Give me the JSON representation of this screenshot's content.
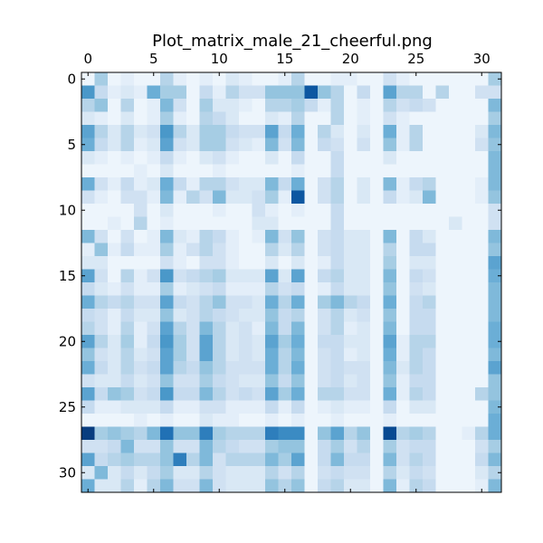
{
  "chart_data": {
    "type": "heatmap",
    "title": "Plot_matrix_male_21_cheerful.png",
    "xlabel": "",
    "ylabel": "",
    "n_rows": 32,
    "n_cols": 32,
    "x_ticks": [
      0,
      5,
      10,
      15,
      20,
      25,
      30
    ],
    "y_ticks": [
      0,
      5,
      10,
      15,
      20,
      25,
      30
    ],
    "x_axis_position": "top",
    "y_axis_position": "left",
    "y_inverted": true,
    "grid": false,
    "colormap": "Blues",
    "value_range": [
      0,
      1
    ],
    "colorscale": [
      "#f7fbff",
      "#deebf7",
      "#c6dbef",
      "#9ecae1",
      "#6baed6",
      "#4292c6",
      "#2171b5",
      "#08519c",
      "#08306b"
    ],
    "values": [
      [
        0.05,
        0.35,
        0.05,
        0.1,
        0.05,
        0.05,
        0.3,
        0.1,
        0.05,
        0.1,
        0.05,
        0.15,
        0.1,
        0.05,
        0.05,
        0.1,
        0.3,
        0.05,
        0.05,
        0.1,
        0.1,
        0.05,
        0.05,
        0.2,
        0.1,
        0.05,
        0.05,
        0.05,
        0.05,
        0.05,
        0.05,
        0.35
      ],
      [
        0.6,
        0.25,
        0.1,
        0.15,
        0.1,
        0.5,
        0.35,
        0.35,
        0.05,
        0.25,
        0.1,
        0.3,
        0.2,
        0.2,
        0.4,
        0.4,
        0.4,
        0.85,
        0.4,
        0.3,
        0.05,
        0.25,
        0.05,
        0.55,
        0.3,
        0.3,
        0.05,
        0.3,
        0.05,
        0.05,
        0.2,
        0.2
      ],
      [
        0.3,
        0.4,
        0.05,
        0.3,
        0.05,
        0.1,
        0.45,
        0.2,
        0.05,
        0.35,
        0.15,
        0.15,
        0.1,
        0.05,
        0.3,
        0.3,
        0.35,
        0.25,
        0.1,
        0.3,
        0.05,
        0.1,
        0.05,
        0.3,
        0.2,
        0.25,
        0.2,
        0.05,
        0.05,
        0.05,
        0.05,
        0.45
      ],
      [
        0.15,
        0.1,
        0.05,
        0.15,
        0.05,
        0.1,
        0.35,
        0.1,
        0.05,
        0.3,
        0.25,
        0.15,
        0.05,
        0.05,
        0.15,
        0.1,
        0.3,
        0.05,
        0.05,
        0.3,
        0.05,
        0.1,
        0.05,
        0.2,
        0.1,
        0.05,
        0.05,
        0.05,
        0.05,
        0.05,
        0.05,
        0.35
      ],
      [
        0.55,
        0.3,
        0.15,
        0.3,
        0.15,
        0.2,
        0.6,
        0.3,
        0.15,
        0.35,
        0.35,
        0.25,
        0.2,
        0.2,
        0.55,
        0.25,
        0.5,
        0.05,
        0.3,
        0.15,
        0.05,
        0.15,
        0.05,
        0.5,
        0.1,
        0.3,
        0.05,
        0.05,
        0.05,
        0.05,
        0.15,
        0.45
      ],
      [
        0.5,
        0.25,
        0.15,
        0.3,
        0.1,
        0.15,
        0.55,
        0.2,
        0.15,
        0.35,
        0.35,
        0.2,
        0.15,
        0.1,
        0.45,
        0.2,
        0.45,
        0.05,
        0.25,
        0.2,
        0.05,
        0.2,
        0.05,
        0.4,
        0.1,
        0.3,
        0.05,
        0.05,
        0.05,
        0.05,
        0.2,
        0.4
      ],
      [
        0.15,
        0.1,
        0.05,
        0.1,
        0.05,
        0.1,
        0.25,
        0.1,
        0.05,
        0.15,
        0.2,
        0.1,
        0.05,
        0.05,
        0.15,
        0.05,
        0.25,
        0.05,
        0.05,
        0.25,
        0.05,
        0.05,
        0.05,
        0.15,
        0.05,
        0.05,
        0.05,
        0.05,
        0.05,
        0.05,
        0.05,
        0.45
      ],
      [
        0.05,
        0.05,
        0.05,
        0.05,
        0.1,
        0.05,
        0.15,
        0.05,
        0.05,
        0.05,
        0.1,
        0.05,
        0.05,
        0.05,
        0.05,
        0.05,
        0.1,
        0.05,
        0.05,
        0.25,
        0.05,
        0.05,
        0.05,
        0.05,
        0.05,
        0.05,
        0.05,
        0.05,
        0.05,
        0.05,
        0.05,
        0.45
      ],
      [
        0.5,
        0.2,
        0.1,
        0.25,
        0.1,
        0.15,
        0.5,
        0.25,
        0.1,
        0.3,
        0.3,
        0.2,
        0.15,
        0.15,
        0.45,
        0.25,
        0.5,
        0.05,
        0.2,
        0.3,
        0.05,
        0.15,
        0.05,
        0.45,
        0.1,
        0.25,
        0.3,
        0.05,
        0.05,
        0.05,
        0.1,
        0.45
      ],
      [
        0.2,
        0.1,
        0.05,
        0.2,
        0.2,
        0.1,
        0.45,
        0.1,
        0.3,
        0.2,
        0.45,
        0.15,
        0.15,
        0.2,
        0.35,
        0.1,
        0.85,
        0.05,
        0.2,
        0.3,
        0.05,
        0.15,
        0.05,
        0.25,
        0.1,
        0.15,
        0.45,
        0.05,
        0.05,
        0.05,
        0.1,
        0.4
      ],
      [
        0.05,
        0.05,
        0.05,
        0.05,
        0.2,
        0.05,
        0.15,
        0.05,
        0.05,
        0.05,
        0.1,
        0.05,
        0.05,
        0.2,
        0.1,
        0.05,
        0.1,
        0.05,
        0.05,
        0.25,
        0.05,
        0.05,
        0.05,
        0.05,
        0.05,
        0.05,
        0.05,
        0.05,
        0.05,
        0.05,
        0.05,
        0.2
      ],
      [
        0.05,
        0.05,
        0.1,
        0.05,
        0.3,
        0.05,
        0.1,
        0.05,
        0.05,
        0.05,
        0.05,
        0.05,
        0.05,
        0.15,
        0.15,
        0.05,
        0.05,
        0.05,
        0.05,
        0.25,
        0.05,
        0.05,
        0.05,
        0.05,
        0.05,
        0.05,
        0.05,
        0.05,
        0.15,
        0.05,
        0.05,
        0.2
      ],
      [
        0.45,
        0.2,
        0.05,
        0.2,
        0.05,
        0.1,
        0.45,
        0.15,
        0.1,
        0.3,
        0.25,
        0.1,
        0.05,
        0.1,
        0.45,
        0.2,
        0.4,
        0.05,
        0.2,
        0.25,
        0.15,
        0.15,
        0.05,
        0.45,
        0.05,
        0.25,
        0.15,
        0.05,
        0.05,
        0.05,
        0.05,
        0.45
      ],
      [
        0.1,
        0.4,
        0.1,
        0.25,
        0.1,
        0.1,
        0.35,
        0.1,
        0.2,
        0.3,
        0.2,
        0.1,
        0.05,
        0.05,
        0.3,
        0.15,
        0.3,
        0.05,
        0.2,
        0.25,
        0.15,
        0.15,
        0.05,
        0.3,
        0.05,
        0.25,
        0.25,
        0.05,
        0.05,
        0.05,
        0.05,
        0.4
      ],
      [
        0.15,
        0.15,
        0.05,
        0.05,
        0.05,
        0.05,
        0.2,
        0.1,
        0.05,
        0.2,
        0.2,
        0.1,
        0.05,
        0.05,
        0.15,
        0.05,
        0.15,
        0.05,
        0.1,
        0.25,
        0.15,
        0.15,
        0.05,
        0.35,
        0.05,
        0.15,
        0.15,
        0.05,
        0.05,
        0.05,
        0.05,
        0.55
      ],
      [
        0.55,
        0.2,
        0.05,
        0.3,
        0.1,
        0.2,
        0.6,
        0.2,
        0.25,
        0.3,
        0.35,
        0.15,
        0.15,
        0.15,
        0.55,
        0.15,
        0.55,
        0.05,
        0.25,
        0.3,
        0.15,
        0.15,
        0.05,
        0.45,
        0.05,
        0.25,
        0.2,
        0.05,
        0.05,
        0.05,
        0.05,
        0.5
      ],
      [
        0.25,
        0.15,
        0.1,
        0.2,
        0.1,
        0.1,
        0.35,
        0.1,
        0.15,
        0.2,
        0.25,
        0.1,
        0.1,
        0.1,
        0.3,
        0.2,
        0.25,
        0.05,
        0.1,
        0.25,
        0.15,
        0.15,
        0.05,
        0.4,
        0.05,
        0.2,
        0.15,
        0.05,
        0.05,
        0.05,
        0.05,
        0.45
      ],
      [
        0.5,
        0.3,
        0.25,
        0.3,
        0.2,
        0.2,
        0.55,
        0.25,
        0.2,
        0.3,
        0.4,
        0.2,
        0.2,
        0.15,
        0.5,
        0.3,
        0.5,
        0.05,
        0.35,
        0.45,
        0.3,
        0.25,
        0.05,
        0.5,
        0.05,
        0.25,
        0.3,
        0.05,
        0.05,
        0.05,
        0.05,
        0.45
      ],
      [
        0.25,
        0.2,
        0.1,
        0.25,
        0.15,
        0.15,
        0.4,
        0.15,
        0.2,
        0.3,
        0.25,
        0.2,
        0.15,
        0.15,
        0.4,
        0.25,
        0.3,
        0.05,
        0.2,
        0.3,
        0.15,
        0.2,
        0.05,
        0.4,
        0.05,
        0.25,
        0.25,
        0.05,
        0.05,
        0.05,
        0.05,
        0.45
      ],
      [
        0.3,
        0.2,
        0.1,
        0.3,
        0.1,
        0.2,
        0.55,
        0.3,
        0.2,
        0.45,
        0.3,
        0.15,
        0.2,
        0.1,
        0.45,
        0.25,
        0.45,
        0.05,
        0.2,
        0.3,
        0.1,
        0.15,
        0.05,
        0.45,
        0.05,
        0.25,
        0.25,
        0.05,
        0.05,
        0.05,
        0.05,
        0.5
      ],
      [
        0.55,
        0.3,
        0.15,
        0.35,
        0.1,
        0.25,
        0.6,
        0.35,
        0.2,
        0.55,
        0.3,
        0.15,
        0.2,
        0.15,
        0.55,
        0.35,
        0.5,
        0.05,
        0.25,
        0.25,
        0.15,
        0.15,
        0.05,
        0.55,
        0.1,
        0.3,
        0.3,
        0.05,
        0.05,
        0.05,
        0.05,
        0.5
      ],
      [
        0.4,
        0.2,
        0.15,
        0.3,
        0.15,
        0.2,
        0.55,
        0.35,
        0.2,
        0.55,
        0.3,
        0.15,
        0.2,
        0.15,
        0.5,
        0.3,
        0.45,
        0.05,
        0.2,
        0.25,
        0.1,
        0.15,
        0.05,
        0.5,
        0.1,
        0.3,
        0.25,
        0.05,
        0.05,
        0.05,
        0.05,
        0.45
      ],
      [
        0.5,
        0.25,
        0.15,
        0.3,
        0.2,
        0.25,
        0.55,
        0.3,
        0.25,
        0.4,
        0.3,
        0.2,
        0.2,
        0.2,
        0.5,
        0.3,
        0.5,
        0.05,
        0.2,
        0.25,
        0.2,
        0.2,
        0.05,
        0.45,
        0.15,
        0.3,
        0.25,
        0.05,
        0.05,
        0.05,
        0.05,
        0.55
      ],
      [
        0.2,
        0.15,
        0.15,
        0.25,
        0.15,
        0.2,
        0.4,
        0.2,
        0.2,
        0.35,
        0.25,
        0.2,
        0.15,
        0.15,
        0.4,
        0.25,
        0.4,
        0.05,
        0.2,
        0.25,
        0.15,
        0.2,
        0.05,
        0.4,
        0.1,
        0.25,
        0.25,
        0.05,
        0.05,
        0.05,
        0.05,
        0.4
      ],
      [
        0.55,
        0.25,
        0.4,
        0.35,
        0.2,
        0.25,
        0.6,
        0.25,
        0.25,
        0.45,
        0.3,
        0.2,
        0.25,
        0.2,
        0.55,
        0.35,
        0.5,
        0.05,
        0.3,
        0.3,
        0.2,
        0.2,
        0.05,
        0.5,
        0.1,
        0.3,
        0.25,
        0.05,
        0.05,
        0.05,
        0.3,
        0.4
      ],
      [
        0.25,
        0.1,
        0.1,
        0.15,
        0.15,
        0.15,
        0.25,
        0.1,
        0.1,
        0.2,
        0.2,
        0.1,
        0.1,
        0.1,
        0.25,
        0.1,
        0.25,
        0.05,
        0.1,
        0.15,
        0.1,
        0.1,
        0.05,
        0.25,
        0.05,
        0.15,
        0.15,
        0.05,
        0.05,
        0.05,
        0.05,
        0.45
      ],
      [
        0.05,
        0.05,
        0.05,
        0.05,
        0.1,
        0.05,
        0.1,
        0.05,
        0.05,
        0.15,
        0.1,
        0.1,
        0.05,
        0.05,
        0.1,
        0.05,
        0.1,
        0.05,
        0.05,
        0.1,
        0.05,
        0.05,
        0.05,
        0.1,
        0.05,
        0.05,
        0.05,
        0.05,
        0.05,
        0.05,
        0.05,
        0.5
      ],
      [
        0.95,
        0.35,
        0.4,
        0.35,
        0.3,
        0.45,
        0.75,
        0.4,
        0.4,
        0.7,
        0.35,
        0.3,
        0.3,
        0.3,
        0.7,
        0.65,
        0.65,
        0.05,
        0.4,
        0.55,
        0.3,
        0.4,
        0.05,
        0.9,
        0.3,
        0.35,
        0.3,
        0.05,
        0.05,
        0.1,
        0.3,
        0.5
      ],
      [
        0.2,
        0.2,
        0.25,
        0.45,
        0.2,
        0.2,
        0.4,
        0.2,
        0.2,
        0.45,
        0.3,
        0.25,
        0.2,
        0.2,
        0.35,
        0.4,
        0.4,
        0.05,
        0.25,
        0.35,
        0.2,
        0.3,
        0.05,
        0.35,
        0.2,
        0.25,
        0.25,
        0.05,
        0.05,
        0.05,
        0.2,
        0.35
      ],
      [
        0.55,
        0.25,
        0.3,
        0.35,
        0.3,
        0.3,
        0.4,
        0.7,
        0.3,
        0.45,
        0.2,
        0.3,
        0.3,
        0.3,
        0.45,
        0.35,
        0.55,
        0.05,
        0.25,
        0.45,
        0.25,
        0.25,
        0.05,
        0.45,
        0.2,
        0.3,
        0.25,
        0.05,
        0.05,
        0.05,
        0.25,
        0.45
      ],
      [
        0.15,
        0.45,
        0.15,
        0.25,
        0.15,
        0.25,
        0.35,
        0.15,
        0.15,
        0.3,
        0.2,
        0.15,
        0.15,
        0.15,
        0.3,
        0.2,
        0.3,
        0.05,
        0.2,
        0.25,
        0.2,
        0.2,
        0.05,
        0.3,
        0.15,
        0.25,
        0.2,
        0.05,
        0.05,
        0.05,
        0.15,
        0.3
      ],
      [
        0.5,
        0.15,
        0.15,
        0.3,
        0.1,
        0.3,
        0.45,
        0.2,
        0.2,
        0.45,
        0.2,
        0.15,
        0.15,
        0.15,
        0.4,
        0.3,
        0.4,
        0.05,
        0.25,
        0.3,
        0.15,
        0.15,
        0.05,
        0.45,
        0.1,
        0.3,
        0.25,
        0.05,
        0.05,
        0.05,
        0.1,
        0.45
      ]
    ]
  }
}
